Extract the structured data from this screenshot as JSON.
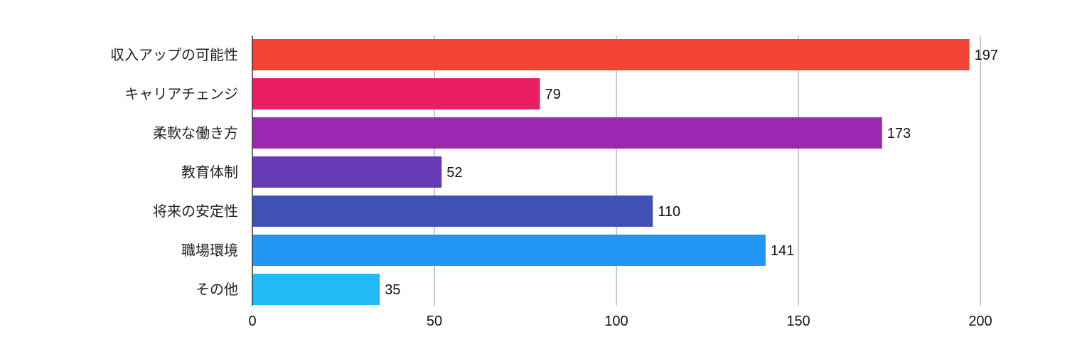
{
  "chart_data": {
    "type": "bar",
    "orientation": "horizontal",
    "title": "",
    "xlabel": "",
    "ylabel": "",
    "categories": [
      "収入アップの可能性",
      "キャリアチェンジ",
      "柔軟な働き方",
      "教育体制",
      "将来の安定性",
      "職場環境",
      "その他"
    ],
    "values": [
      197,
      79,
      173,
      52,
      110,
      141,
      35
    ],
    "colors": [
      "#f44336",
      "#e91e63",
      "#9c27b0",
      "#673ab7",
      "#3f51b5",
      "#2196f3",
      "#22bbf8"
    ],
    "xlim": [
      0,
      200
    ],
    "xticks": [
      0,
      50,
      100,
      150,
      200
    ],
    "grid": true,
    "legend": "none",
    "data_labels": true
  }
}
